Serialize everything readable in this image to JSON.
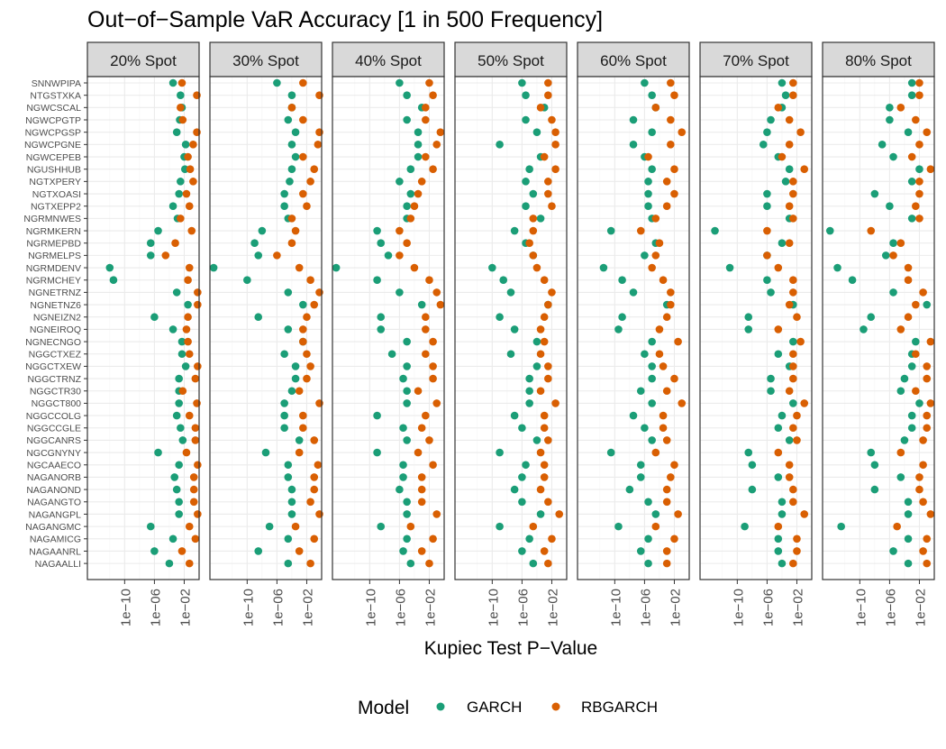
{
  "chart_data": {
    "type": "scatter",
    "title": "Out−of−Sample VaR Accuracy [1 in 500 Frequency]",
    "xlabel": "Kupiec Test P−Value",
    "ylabel": "",
    "x_scale": "log10",
    "xlim": [
      1e-15,
      1
    ],
    "x_ticks": [
      1e-10,
      1e-06,
      0.01
    ],
    "x_tick_labels": [
      "1e−10",
      "1e−06",
      "1e−02"
    ],
    "grid": true,
    "legend": {
      "title": "Model",
      "position": "bottom",
      "entries": [
        {
          "name": "GARCH",
          "color": "#1b9e77"
        },
        {
          "name": "RBGARCH",
          "color": "#d95f02"
        }
      ]
    },
    "categories": [
      "SNNWPIPA",
      "NTGSTXKA",
      "NGWCSCAL",
      "NGWCPGTP",
      "NGWCPGSP",
      "NGWCPGNE",
      "NGWCEPEB",
      "NGUSHHUB",
      "NGTXPERY",
      "NGTXOASI",
      "NGTXEPP2",
      "NGRMNWES",
      "NGRMKERN",
      "NGRMEPBD",
      "NGRMELPS",
      "NGRMDENV",
      "NGRMCHEY",
      "NGNETRNZ",
      "NGNETNZ6",
      "NGNEIZN2",
      "NGNEIROQ",
      "NGNECNGO",
      "NGGCTXEZ",
      "NGGCTXEW",
      "NGGCTRNZ",
      "NGGCTR30",
      "NGGCT800",
      "NGGCCOLG",
      "NGGCCGLE",
      "NGGCANRS",
      "NGCGNYNY",
      "NGCAAECO",
      "NAGANORB",
      "NAGANOND",
      "NAGANGTO",
      "NAGANGPL",
      "NAGANGMC",
      "NAGAMICG",
      "NAGAANRL",
      "NAGAALLI"
    ],
    "panels": [
      {
        "label": "20% Spot",
        "series": [
          {
            "name": "GARCH",
            "log10_x": [
              -3.5,
              -2.5,
              -2.3,
              -2.6,
              -3.0,
              -1.8,
              -2.0,
              -1.9,
              -2.5,
              -2.7,
              -3.5,
              -2.9,
              -5.5,
              -6.5,
              -6.5,
              -12.0,
              -11.5,
              -3.0,
              -1.5,
              -6.0,
              -3.5,
              -2.3,
              -2.3,
              -1.8,
              -2.7,
              -2.7,
              -2.7,
              -3.0,
              -2.5,
              -2.2,
              -5.5,
              -2.7,
              -3.3,
              -3.0,
              -2.7,
              -2.7,
              -6.5,
              -3.5,
              -6.0,
              -4.0
            ]
          },
          {
            "name": "RBGARCH",
            "log10_x": [
              -2.3,
              -0.3,
              -2.5,
              -2.2,
              -0.3,
              -0.8,
              -1.5,
              -1.2,
              -0.8,
              -1.7,
              -1.3,
              -2.5,
              -1.0,
              -3.2,
              -4.5,
              -1.3,
              -1.5,
              -0.2,
              -0.2,
              -1.5,
              -1.7,
              -1.5,
              -1.3,
              -0.2,
              -0.5,
              -2.2,
              -0.3,
              -1.3,
              -0.5,
              -0.5,
              -1.7,
              -0.2,
              -0.7,
              -0.7,
              -0.7,
              -0.2,
              -1.3,
              -0.5,
              -2.3,
              -1.3
            ]
          }
        ]
      },
      {
        "label": "30% Spot",
        "series": [
          {
            "name": "GARCH",
            "log10_x": [
              -6.0,
              -4.0,
              -4.0,
              -4.5,
              -3.5,
              -4.0,
              -3.5,
              -4.0,
              -4.3,
              -5.0,
              -5.0,
              -4.5,
              -8.0,
              -9.0,
              -8.5,
              -14.5,
              -10.0,
              -4.5,
              -2.5,
              -8.5,
              -4.5,
              -2.5,
              -5.0,
              -3.5,
              -3.5,
              -4.0,
              -5.0,
              -5.0,
              -5.0,
              -3.0,
              -7.5,
              -4.5,
              -4.5,
              -4.0,
              -4.0,
              -4.0,
              -7.0,
              -4.5,
              -8.5,
              -4.5
            ]
          },
          {
            "name": "RBGARCH",
            "log10_x": [
              -2.5,
              -0.3,
              -4.0,
              -2.5,
              -0.3,
              -0.5,
              -2.5,
              -1.0,
              -1.5,
              -2.5,
              -2.0,
              -4.0,
              -3.5,
              -4.0,
              -6.0,
              -3.0,
              -1.5,
              -0.3,
              -1.0,
              -2.0,
              -2.5,
              -2.5,
              -2.0,
              -1.5,
              -2.0,
              -3.0,
              -0.3,
              -2.5,
              -2.5,
              -1.0,
              -3.0,
              -0.5,
              -1.0,
              -1.0,
              -1.5,
              -0.3,
              -3.5,
              -1.0,
              -3.0,
              -1.5
            ]
          }
        ]
      },
      {
        "label": "40% Spot",
        "series": [
          {
            "name": "GARCH",
            "log10_x": [
              -6.0,
              -5.0,
              -3.0,
              -5.0,
              -3.5,
              -3.5,
              -3.5,
              -4.5,
              -6.0,
              -4.5,
              -5.0,
              -5.0,
              -9.0,
              -8.5,
              -7.5,
              -14.5,
              -9.0,
              -6.0,
              -3.0,
              -8.5,
              -8.5,
              -5.0,
              -7.0,
              -5.0,
              -5.5,
              -5.0,
              -5.0,
              -9.0,
              -5.5,
              -5.0,
              -9.0,
              -5.5,
              -5.5,
              -6.0,
              -5.0,
              -5.0,
              -8.5,
              -5.0,
              -5.5,
              -4.5
            ]
          },
          {
            "name": "RBGARCH",
            "log10_x": [
              -2.0,
              -1.5,
              -2.5,
              -2.5,
              -0.5,
              -1.0,
              -2.5,
              -1.5,
              -3.0,
              -3.5,
              -4.0,
              -4.5,
              -6.0,
              -5.0,
              -6.0,
              -4.0,
              -2.0,
              -1.0,
              -0.5,
              -2.5,
              -2.5,
              -1.5,
              -2.5,
              -1.5,
              -1.5,
              -3.5,
              -1.0,
              -2.5,
              -3.0,
              -2.0,
              -3.5,
              -1.5,
              -3.0,
              -3.0,
              -3.0,
              -1.0,
              -4.5,
              -1.5,
              -3.0,
              -2.0
            ]
          }
        ]
      },
      {
        "label": "50% Spot",
        "series": [
          {
            "name": "GARCH",
            "log10_x": [
              -6.0,
              -5.5,
              -3.0,
              -5.5,
              -4.0,
              -9.0,
              -3.5,
              -5.0,
              -5.5,
              -4.5,
              -5.5,
              -3.5,
              -7.0,
              -5.5,
              -4.5,
              -10.0,
              -8.5,
              -7.5,
              -2.5,
              -9.0,
              -7.0,
              -4.0,
              -7.5,
              -4.0,
              -5.0,
              -5.0,
              -5.0,
              -7.0,
              -6.0,
              -4.0,
              -9.0,
              -5.5,
              -6.0,
              -7.0,
              -6.0,
              -3.5,
              -9.0,
              -5.0,
              -6.0,
              -4.5
            ]
          },
          {
            "name": "RBGARCH",
            "log10_x": [
              -2.5,
              -2.5,
              -3.5,
              -2.0,
              -1.5,
              -1.5,
              -3.0,
              -1.5,
              -2.5,
              -2.5,
              -2.0,
              -4.5,
              -4.5,
              -5.0,
              -4.5,
              -4.0,
              -3.0,
              -2.0,
              -2.5,
              -3.0,
              -3.5,
              -3.0,
              -3.5,
              -2.5,
              -2.5,
              -3.5,
              -1.5,
              -3.0,
              -3.0,
              -2.5,
              -3.5,
              -3.0,
              -3.0,
              -3.5,
              -2.5,
              -1.0,
              -4.5,
              -2.0,
              -3.0,
              -2.5
            ]
          }
        ]
      },
      {
        "label": "60% Spot",
        "series": [
          {
            "name": "GARCH",
            "log10_x": [
              -6.0,
              -5.0,
              -4.5,
              -7.5,
              -5.0,
              -7.5,
              -6.0,
              -5.0,
              -5.5,
              -5.5,
              -5.5,
              -5.0,
              -10.5,
              -4.5,
              -6.0,
              -11.5,
              -9.0,
              -7.5,
              -3.0,
              -9.0,
              -9.5,
              -5.0,
              -6.0,
              -5.0,
              -5.0,
              -6.5,
              -5.0,
              -7.5,
              -6.0,
              -5.0,
              -10.5,
              -6.5,
              -6.5,
              -8.0,
              -5.5,
              -4.5,
              -9.5,
              -5.5,
              -6.5,
              -5.5
            ]
          },
          {
            "name": "RBGARCH",
            "log10_x": [
              -2.5,
              -2.0,
              -4.5,
              -2.5,
              -1.0,
              -2.5,
              -5.5,
              -2.0,
              -3.0,
              -2.0,
              -3.0,
              -4.5,
              -6.5,
              -4.0,
              -4.5,
              -5.0,
              -3.5,
              -2.5,
              -2.5,
              -3.0,
              -4.0,
              -1.5,
              -4.0,
              -3.5,
              -2.0,
              -3.0,
              -1.0,
              -3.5,
              -3.5,
              -3.0,
              -4.5,
              -2.0,
              -2.5,
              -3.0,
              -3.0,
              -1.5,
              -4.5,
              -2.0,
              -3.0,
              -3.0
            ]
          }
        ]
      },
      {
        "label": "70% Spot",
        "series": [
          {
            "name": "GARCH",
            "log10_x": [
              -4.0,
              -3.5,
              -4.0,
              -5.5,
              -6.0,
              -6.5,
              -4.5,
              -3.0,
              -3.5,
              -6.0,
              -6.0,
              -3.0,
              -13.0,
              -4.0,
              -6.0,
              -11.0,
              -6.0,
              -5.5,
              -2.5,
              -8.5,
              -8.5,
              -2.5,
              -4.5,
              -3.0,
              -5.5,
              -5.5,
              -2.5,
              -4.0,
              -4.5,
              -3.0,
              -8.5,
              -8.0,
              -4.5,
              -8.0,
              -4.0,
              -4.0,
              -9.0,
              -4.5,
              -4.5,
              -4.0
            ]
          },
          {
            "name": "RBGARCH",
            "log10_x": [
              -2.5,
              -2.5,
              -4.5,
              -3.0,
              -1.5,
              -3.0,
              -4.0,
              -1.0,
              -2.5,
              -2.5,
              -3.0,
              -2.5,
              -6.0,
              -3.0,
              -6.0,
              -4.5,
              -2.5,
              -2.5,
              -3.0,
              -2.0,
              -4.5,
              -1.5,
              -2.5,
              -2.5,
              -2.5,
              -3.0,
              -1.0,
              -2.0,
              -2.5,
              -2.0,
              -4.5,
              -3.0,
              -3.0,
              -2.5,
              -2.5,
              -1.0,
              -4.5,
              -2.0,
              -2.0,
              -2.5
            ]
          }
        ]
      },
      {
        "label": "80% Spot",
        "series": [
          {
            "name": "GARCH",
            "log10_x": [
              -3.0,
              -3.0,
              -6.0,
              -6.0,
              -3.5,
              -7.0,
              -5.5,
              -2.0,
              -3.0,
              -8.0,
              -6.0,
              -3.0,
              -14.0,
              -5.5,
              -6.5,
              -13.0,
              -11.0,
              -5.5,
              -1.0,
              -8.5,
              -9.5,
              -2.5,
              -3.0,
              -3.0,
              -4.0,
              -4.5,
              -2.0,
              -3.0,
              -3.0,
              -4.0,
              -8.5,
              -8.0,
              -4.5,
              -8.0,
              -3.5,
              -3.5,
              -12.5,
              -3.5,
              -5.5,
              -3.5
            ]
          },
          {
            "name": "RBGARCH",
            "log10_x": [
              -2.0,
              -2.0,
              -4.5,
              -2.5,
              -1.0,
              -2.0,
              -3.0,
              -0.5,
              -2.0,
              -2.0,
              -2.5,
              -2.0,
              -8.5,
              -4.5,
              -5.5,
              -3.5,
              -3.5,
              -1.5,
              -2.5,
              -3.5,
              -4.5,
              -0.5,
              -2.5,
              -1.0,
              -1.0,
              -2.5,
              -0.5,
              -1.0,
              -1.0,
              -1.5,
              -4.5,
              -1.5,
              -2.0,
              -2.0,
              -1.5,
              -0.5,
              -5.0,
              -1.0,
              -1.5,
              -1.0
            ]
          }
        ]
      }
    ]
  }
}
